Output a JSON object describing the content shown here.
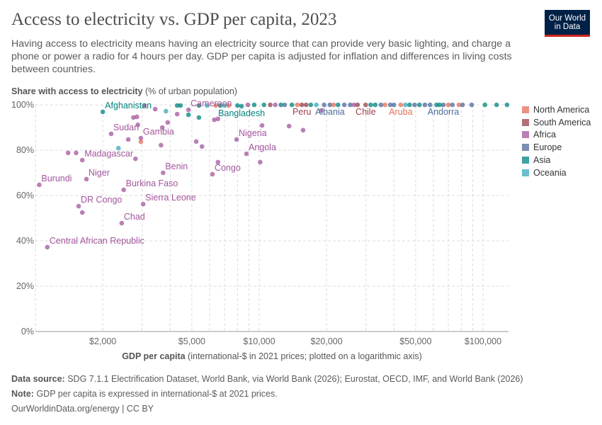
{
  "header": {
    "title": "Access to electricity vs. GDP per capita, 2023",
    "subtitle": "Having access to electricity means having an electricity source that can provide very basic lighting, and charge a phone or power a radio for 4 hours per day. GDP per capita is adjusted for inflation and differences in living costs between countries.",
    "logo": "Our World in Data"
  },
  "footer": {
    "source_label": "Data source:",
    "source": "SDG 7.1.1 Electrification Dataset, World Bank, via World Bank (2026); Eurostat, OECD, IMF, and World Bank (2026)",
    "note_label": "Note:",
    "note": "GDP per capita is expressed in international-$ at 2021 prices.",
    "url": "OurWorldinData.org/energy | CC BY"
  },
  "chart_data": {
    "type": "scatter",
    "title": "Access to electricity vs. GDP per capita, 2023",
    "ylabel_bold": "Share with access to electricity",
    "ylabel_rest": " (% of urban population)",
    "xlabel_bold": "GDP per capita",
    "xlabel_rest": " (international-$ in 2021 prices; plotted on a logarithmic axis)",
    "x_scale": "log",
    "xlim": [
      1000,
      130000
    ],
    "ylim": [
      0,
      100
    ],
    "grid": true,
    "legend_position": "right",
    "x_ticks": [
      {
        "v": 2000,
        "label": "$2,000"
      },
      {
        "v": 5000,
        "label": "$5,000"
      },
      {
        "v": 10000,
        "label": "$10,000"
      },
      {
        "v": 20000,
        "label": "$20,000"
      },
      {
        "v": 50000,
        "label": "$50,000"
      },
      {
        "v": 100000,
        "label": "$100,000"
      }
    ],
    "y_ticks": [
      {
        "v": 0,
        "label": "0%"
      },
      {
        "v": 20,
        "label": "20%"
      },
      {
        "v": 40,
        "label": "40%"
      },
      {
        "v": 60,
        "label": "60%"
      },
      {
        "v": 80,
        "label": "80%"
      },
      {
        "v": 100,
        "label": "100%"
      }
    ],
    "regions": [
      {
        "name": "North America",
        "color": "#e56e5a"
      },
      {
        "name": "South America",
        "color": "#9a3f4a"
      },
      {
        "name": "Africa",
        "color": "#a2559c"
      },
      {
        "name": "Europe",
        "color": "#4c6a9c"
      },
      {
        "name": "Asia",
        "color": "#00847e"
      },
      {
        "name": "Oceania",
        "color": "#38aaba"
      }
    ],
    "points": [
      {
        "label": "Central African Republic",
        "gdp": 1130,
        "value": 37.2,
        "region": "Africa"
      },
      {
        "label": "Burundi",
        "gdp": 1040,
        "value": 64.7,
        "region": "Africa"
      },
      {
        "label": "DR Congo",
        "gdp": 1560,
        "value": 55.3,
        "region": "Africa"
      },
      {
        "gdp": 1620,
        "value": 52.5,
        "region": "Africa"
      },
      {
        "label": "Niger",
        "gdp": 1690,
        "value": 67.2,
        "region": "Africa"
      },
      {
        "label": "Madagascar",
        "gdp": 1620,
        "value": 75.6,
        "region": "Africa"
      },
      {
        "gdp": 1400,
        "value": 78.8,
        "region": "Africa"
      },
      {
        "gdp": 1520,
        "value": 78.8,
        "region": "Africa"
      },
      {
        "label": "Chad",
        "gdp": 2430,
        "value": 47.8,
        "region": "Africa"
      },
      {
        "label": "Burkina Faso",
        "gdp": 2480,
        "value": 62.5,
        "region": "Africa"
      },
      {
        "label": "Sierra Leone",
        "gdp": 3030,
        "value": 56.2,
        "region": "Africa"
      },
      {
        "label": "Benin",
        "gdp": 3720,
        "value": 70.0,
        "region": "Africa"
      },
      {
        "label": "Congo",
        "gdp": 6180,
        "value": 69.4,
        "region": "Africa"
      },
      {
        "label": "Angola",
        "gdp": 8770,
        "value": 78.4,
        "region": "Africa"
      },
      {
        "label": "Nigeria",
        "gdp": 7920,
        "value": 84.7,
        "region": "Africa"
      },
      {
        "label": "Gambia",
        "gdp": 2960,
        "value": 85.3,
        "region": "Africa"
      },
      {
        "label": "Sudan",
        "gdp": 2180,
        "value": 87.2,
        "region": "Africa"
      },
      {
        "label": "Afghanistan",
        "gdp": 2000,
        "value": 96.9,
        "region": "Asia"
      },
      {
        "label": "Cameroon",
        "gdp": 4830,
        "value": 97.8,
        "region": "Africa"
      },
      {
        "label": "Bangladesh",
        "gdp": 8340,
        "value": 99.4,
        "region": "Asia"
      },
      {
        "label": "Peru",
        "gdp": 15500,
        "value": 100,
        "region": "South America"
      },
      {
        "label": "Albania",
        "gdp": 20700,
        "value": 100,
        "region": "Europe"
      },
      {
        "label": "Chile",
        "gdp": 29900,
        "value": 100,
        "region": "South America"
      },
      {
        "label": "Aruba",
        "gdp": 42900,
        "value": 100,
        "region": "North America"
      },
      {
        "label": "Andorra",
        "gdp": 66500,
        "value": 100,
        "region": "Europe"
      },
      {
        "gdp": 2350,
        "value": 80.9,
        "region": "Oceania"
      },
      {
        "gdp": 2600,
        "value": 84.7,
        "region": "Africa"
      },
      {
        "gdp": 2740,
        "value": 94.4,
        "region": "Africa"
      },
      {
        "gdp": 2840,
        "value": 94.7,
        "region": "Africa"
      },
      {
        "gdp": 2870,
        "value": 91.2,
        "region": "Africa"
      },
      {
        "gdp": 2960,
        "value": 83.7,
        "region": "North America"
      },
      {
        "gdp": 3070,
        "value": 99.7,
        "region": "Africa"
      },
      {
        "gdp": 3430,
        "value": 98.1,
        "region": "Africa"
      },
      {
        "gdp": 2800,
        "value": 76.2,
        "region": "Africa"
      },
      {
        "gdp": 3640,
        "value": 82.2,
        "region": "Africa"
      },
      {
        "gdp": 3690,
        "value": 90.0,
        "region": "Africa"
      },
      {
        "gdp": 3900,
        "value": 92.2,
        "region": "Africa"
      },
      {
        "gdp": 3830,
        "value": 97.2,
        "region": "Oceania"
      },
      {
        "gdp": 4300,
        "value": 95.9,
        "region": "Africa"
      },
      {
        "gdp": 4300,
        "value": 99.7,
        "region": "Asia"
      },
      {
        "gdp": 4450,
        "value": 99.7,
        "region": "Asia"
      },
      {
        "gdp": 4830,
        "value": 95.6,
        "region": "Asia"
      },
      {
        "gdp": 5380,
        "value": 99.7,
        "region": "Asia"
      },
      {
        "gdp": 5380,
        "value": 94.4,
        "region": "Asia"
      },
      {
        "gdp": 5850,
        "value": 99.7,
        "region": "Oceania"
      },
      {
        "gdp": 5230,
        "value": 83.8,
        "region": "Africa"
      },
      {
        "gdp": 5550,
        "value": 81.6,
        "region": "Africa"
      },
      {
        "gdp": 6300,
        "value": 93.4,
        "region": "Africa"
      },
      {
        "gdp": 6540,
        "value": 93.8,
        "region": "Africa"
      },
      {
        "gdp": 6540,
        "value": 74.7,
        "region": "Africa"
      },
      {
        "gdp": 6400,
        "value": 99.7,
        "region": "North America"
      },
      {
        "gdp": 6700,
        "value": 99.7,
        "region": "Asia"
      },
      {
        "gdp": 7000,
        "value": 99.7,
        "region": "Oceania"
      },
      {
        "gdp": 7300,
        "value": 99.7,
        "region": "North America"
      },
      {
        "gdp": 8000,
        "value": 99.7,
        "region": "Asia"
      },
      {
        "gdp": 8900,
        "value": 100,
        "region": "Africa"
      },
      {
        "gdp": 9500,
        "value": 100,
        "region": "Asia"
      },
      {
        "gdp": 10100,
        "value": 74.7,
        "region": "Africa"
      },
      {
        "gdp": 10300,
        "value": 90.9,
        "region": "Africa"
      },
      {
        "gdp": 10500,
        "value": 100,
        "region": "Asia"
      },
      {
        "gdp": 11200,
        "value": 100,
        "region": "South America"
      },
      {
        "gdp": 11800,
        "value": 100,
        "region": "Africa"
      },
      {
        "gdp": 12500,
        "value": 100,
        "region": "Asia"
      },
      {
        "gdp": 13000,
        "value": 100,
        "region": "Europe"
      },
      {
        "gdp": 13600,
        "value": 90.6,
        "region": "Africa"
      },
      {
        "gdp": 14000,
        "value": 100,
        "region": "Asia"
      },
      {
        "gdp": 14800,
        "value": 100,
        "region": "North America"
      },
      {
        "gdp": 15700,
        "value": 88.8,
        "region": "Africa"
      },
      {
        "gdp": 16200,
        "value": 100,
        "region": "South America"
      },
      {
        "gdp": 17000,
        "value": 100,
        "region": "Asia"
      },
      {
        "gdp": 18000,
        "value": 100,
        "region": "Oceania"
      },
      {
        "gdp": 18900,
        "value": 97.5,
        "region": "Africa"
      },
      {
        "gdp": 19500,
        "value": 100,
        "region": "Europe"
      },
      {
        "gdp": 21500,
        "value": 100,
        "region": "North America"
      },
      {
        "gdp": 22500,
        "value": 100,
        "region": "Asia"
      },
      {
        "gdp": 24000,
        "value": 100,
        "region": "Europe"
      },
      {
        "gdp": 25500,
        "value": 100,
        "region": "Europe"
      },
      {
        "gdp": 26500,
        "value": 100,
        "region": "Africa"
      },
      {
        "gdp": 27500,
        "value": 100,
        "region": "South America"
      },
      {
        "gdp": 31500,
        "value": 100,
        "region": "Asia"
      },
      {
        "gdp": 33000,
        "value": 100,
        "region": "Asia"
      },
      {
        "gdp": 35000,
        "value": 100,
        "region": "Europe"
      },
      {
        "gdp": 36500,
        "value": 100,
        "region": "North America"
      },
      {
        "gdp": 38500,
        "value": 100,
        "region": "Europe"
      },
      {
        "gdp": 40000,
        "value": 100,
        "region": "Europe"
      },
      {
        "gdp": 45000,
        "value": 100,
        "region": "Oceania"
      },
      {
        "gdp": 47000,
        "value": 100,
        "region": "Asia"
      },
      {
        "gdp": 49500,
        "value": 100,
        "region": "Europe"
      },
      {
        "gdp": 52000,
        "value": 100,
        "region": "Asia"
      },
      {
        "gdp": 55000,
        "value": 100,
        "region": "Europe"
      },
      {
        "gdp": 58000,
        "value": 100,
        "region": "Europe"
      },
      {
        "gdp": 62000,
        "value": 100,
        "region": "Asia"
      },
      {
        "gdp": 64000,
        "value": 100,
        "region": "Asia"
      },
      {
        "gdp": 70000,
        "value": 100,
        "region": "North America"
      },
      {
        "gdp": 73000,
        "value": 100,
        "region": "Europe"
      },
      {
        "gdp": 78000,
        "value": 100,
        "region": "North America"
      },
      {
        "gdp": 81000,
        "value": 100,
        "region": "Europe"
      },
      {
        "gdp": 89000,
        "value": 100,
        "region": "Europe"
      },
      {
        "gdp": 102000,
        "value": 100,
        "region": "Asia"
      },
      {
        "gdp": 115000,
        "value": 100,
        "region": "Asia"
      },
      {
        "gdp": 128000,
        "value": 100,
        "region": "Asia"
      }
    ]
  }
}
